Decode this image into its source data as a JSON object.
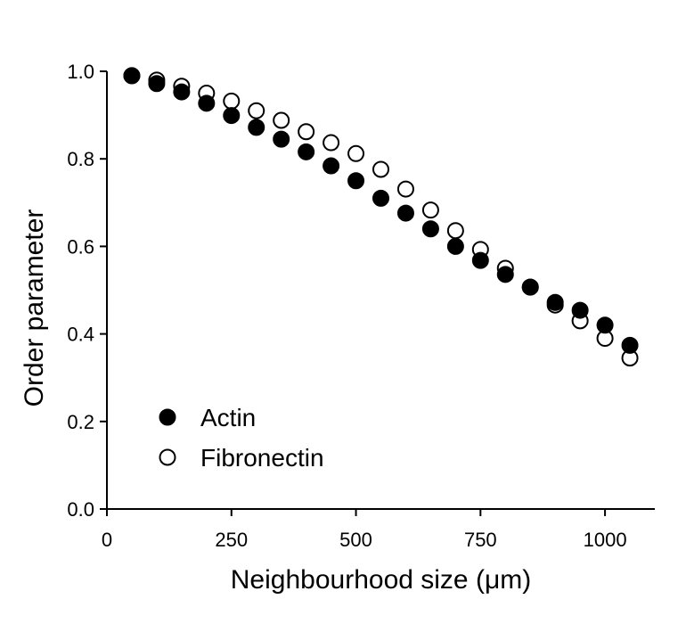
{
  "chart_data": {
    "type": "scatter",
    "title": "",
    "xlabel": "Neighbourhood size (μm)",
    "ylabel": "Order parameter",
    "xlim": [
      0,
      1100
    ],
    "ylim": [
      0,
      1.0
    ],
    "xticks": [
      0,
      250,
      500,
      750,
      1000
    ],
    "xtick_labels": [
      "0",
      "250",
      "500",
      "750",
      "1000"
    ],
    "yticks": [
      0,
      0.2,
      0.4,
      0.6,
      0.8,
      1.0
    ],
    "ytick_labels": [
      "0.0",
      "0.2",
      "0.4",
      "0.6",
      "0.8",
      "1.0"
    ],
    "grid": false,
    "legend_position": "bottom-left",
    "series": [
      {
        "name": "Actin",
        "marker": "filled-circle",
        "color": "#000000",
        "x": [
          50,
          100,
          150,
          200,
          250,
          300,
          350,
          400,
          450,
          500,
          550,
          600,
          650,
          700,
          750,
          800,
          850,
          900,
          950,
          1000,
          1050
        ],
        "y": [
          0.99,
          0.972,
          0.953,
          0.927,
          0.899,
          0.872,
          0.845,
          0.816,
          0.784,
          0.75,
          0.71,
          0.676,
          0.64,
          0.6,
          0.568,
          0.536,
          0.507,
          0.472,
          0.454,
          0.42,
          0.374
        ]
      },
      {
        "name": "Fibronectin",
        "marker": "open-circle",
        "color": "#000000",
        "x": [
          50,
          100,
          150,
          200,
          250,
          300,
          350,
          400,
          450,
          500,
          550,
          600,
          650,
          700,
          750,
          800,
          850,
          900,
          950,
          1000,
          1050
        ],
        "y": [
          0.99,
          0.98,
          0.966,
          0.95,
          0.932,
          0.91,
          0.888,
          0.862,
          0.837,
          0.812,
          0.776,
          0.731,
          0.683,
          0.636,
          0.593,
          0.55,
          0.507,
          0.466,
          0.43,
          0.39,
          0.345
        ]
      }
    ]
  }
}
